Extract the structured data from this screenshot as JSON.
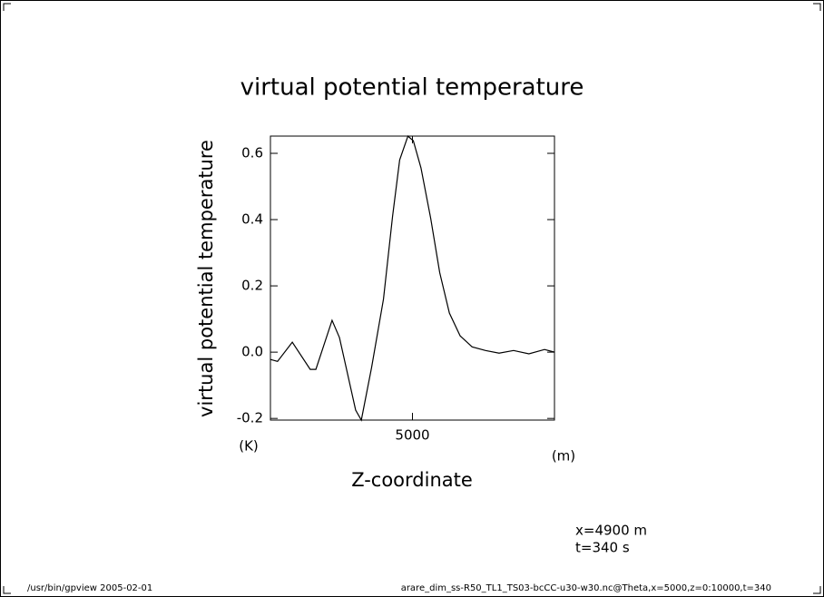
{
  "chart_data": {
    "type": "line",
    "title": "virtual potential temperature",
    "y_label": "virtual potential temperature",
    "y_unit": "(K)",
    "x_label": "Z-coordinate",
    "x_unit": "(m)",
    "annotations": [
      "x=4900 m",
      "t=340 s"
    ],
    "footer_left": "/usr/bin/gpview  2005-02-01",
    "footer_right": "arare_dim_ss-R50_TL1_TS03-bcCC-u30-w30.nc@Theta,x=5000,z=0:10000,t=340",
    "color": "#000000",
    "x": [
      0,
      250,
      770,
      1400,
      1600,
      2170,
      2430,
      3000,
      3200,
      3560,
      3980,
      4300,
      4550,
      4840,
      5030,
      5300,
      5640,
      5960,
      6300,
      6680,
      7100,
      7570,
      8050,
      8560,
      9100,
      9650,
      10000
    ],
    "values": [
      -0.022,
      -0.028,
      0.03,
      -0.052,
      -0.052,
      0.096,
      0.044,
      -0.175,
      -0.205,
      -0.047,
      0.16,
      0.41,
      0.58,
      0.652,
      0.638,
      0.556,
      0.405,
      0.24,
      0.118,
      0.049,
      0.016,
      0.005,
      -0.003,
      0.005,
      -0.005,
      0.008,
      0
    ],
    "xlim": [
      0,
      10000
    ],
    "xticks": [
      5000
    ],
    "ylim": [
      -0.205,
      0.652
    ],
    "yticks": [
      -0.2,
      {
        "value": 0,
        "label": "0.0"
      },
      0.2,
      0.4,
      0.6
    ]
  }
}
